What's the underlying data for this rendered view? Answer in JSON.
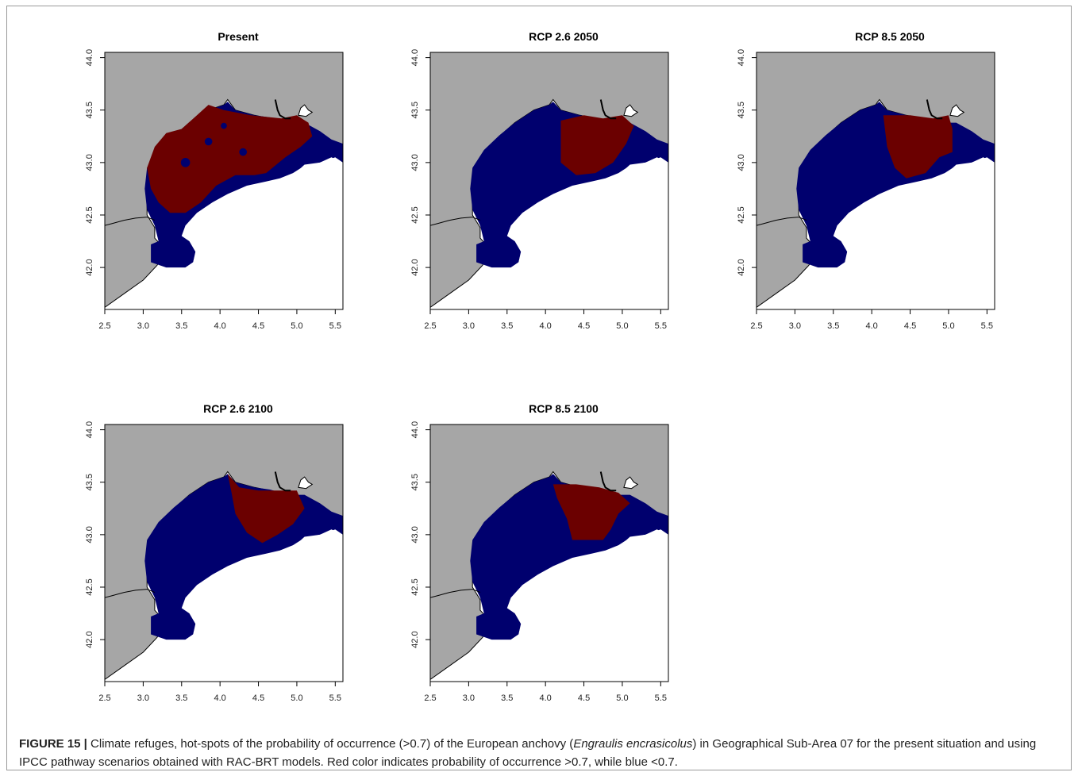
{
  "figure": {
    "label": "FIGURE 15 |",
    "caption_before": " Climate refuges, hot-spots of the probability of occurrence (>0.7) of the European anchovy (",
    "species": "Engraulis encrasicolus",
    "caption_after": ") in Geographical Sub-Area 07 for the present situation and using IPCC pathway scenarios obtained with RAC-BRT models. Red color indicates probability of occurrence >0.7, while blue <0.7."
  },
  "colors": {
    "land": "#a6a6a6",
    "sea_open": "#ffffff",
    "low_probability": "#00006e",
    "high_probability": "#6b0000",
    "coastline": "#000000"
  },
  "axes": {
    "x_ticks": [
      "2.5",
      "3.0",
      "3.5",
      "4.0",
      "4.5",
      "5.0",
      "5.5"
    ],
    "y_ticks": [
      "42.0",
      "42.5",
      "43.0",
      "43.5",
      "44.0"
    ],
    "xlim": [
      2.5,
      5.6
    ],
    "ylim": [
      41.6,
      44.05
    ]
  },
  "panels": [
    {
      "title": "Present",
      "hotspots": [
        [
          [
            3.05,
            42.95
          ],
          [
            3.15,
            43.15
          ],
          [
            3.3,
            43.28
          ],
          [
            3.5,
            43.32
          ],
          [
            3.7,
            43.45
          ],
          [
            3.85,
            43.55
          ],
          [
            4.05,
            43.5
          ],
          [
            4.4,
            43.45
          ],
          [
            4.8,
            43.42
          ],
          [
            5.0,
            43.45
          ],
          [
            5.15,
            43.38
          ],
          [
            5.2,
            43.25
          ],
          [
            5.05,
            43.15
          ],
          [
            4.85,
            43.05
          ],
          [
            4.6,
            42.9
          ],
          [
            4.45,
            42.88
          ],
          [
            4.2,
            42.88
          ],
          [
            3.95,
            42.78
          ],
          [
            3.75,
            42.62
          ],
          [
            3.55,
            42.52
          ],
          [
            3.35,
            42.52
          ],
          [
            3.2,
            42.62
          ],
          [
            3.1,
            42.75
          ]
        ]
      ]
    },
    {
      "title": "RCP 2.6 2050",
      "hotspots": [
        [
          [
            4.2,
            43.4
          ],
          [
            4.5,
            43.45
          ],
          [
            4.75,
            43.42
          ],
          [
            5.0,
            43.45
          ],
          [
            5.15,
            43.35
          ],
          [
            5.05,
            43.18
          ],
          [
            4.88,
            43.0
          ],
          [
            4.65,
            42.9
          ],
          [
            4.4,
            42.88
          ],
          [
            4.2,
            43.0
          ],
          [
            4.2,
            43.22
          ]
        ]
      ]
    },
    {
      "title": "RCP 8.5 2050",
      "hotspots": [
        [
          [
            4.15,
            43.45
          ],
          [
            4.5,
            43.45
          ],
          [
            4.8,
            43.42
          ],
          [
            5.0,
            43.45
          ],
          [
            5.05,
            43.32
          ],
          [
            5.05,
            43.1
          ],
          [
            4.88,
            43.05
          ],
          [
            4.7,
            42.9
          ],
          [
            4.45,
            42.85
          ],
          [
            4.3,
            42.95
          ],
          [
            4.2,
            43.15
          ]
        ]
      ]
    },
    {
      "title": "RCP 2.6 2100",
      "hotspots": [
        [
          [
            4.1,
            43.58
          ],
          [
            4.25,
            43.45
          ],
          [
            4.5,
            43.42
          ],
          [
            4.8,
            43.42
          ],
          [
            5.0,
            43.42
          ],
          [
            5.1,
            43.25
          ],
          [
            4.95,
            43.1
          ],
          [
            4.75,
            43.0
          ],
          [
            4.55,
            42.92
          ],
          [
            4.35,
            43.02
          ],
          [
            4.2,
            43.2
          ],
          [
            4.15,
            43.4
          ]
        ]
      ]
    },
    {
      "title": "RCP 8.5 2100",
      "hotspots": [
        [
          [
            4.1,
            43.48
          ],
          [
            4.4,
            43.48
          ],
          [
            4.7,
            43.45
          ],
          [
            4.95,
            43.4
          ],
          [
            5.1,
            43.3
          ],
          [
            4.95,
            43.2
          ],
          [
            4.85,
            43.05
          ],
          [
            4.75,
            42.95
          ],
          [
            4.35,
            42.95
          ],
          [
            4.28,
            43.15
          ],
          [
            4.15,
            43.35
          ]
        ]
      ]
    }
  ]
}
